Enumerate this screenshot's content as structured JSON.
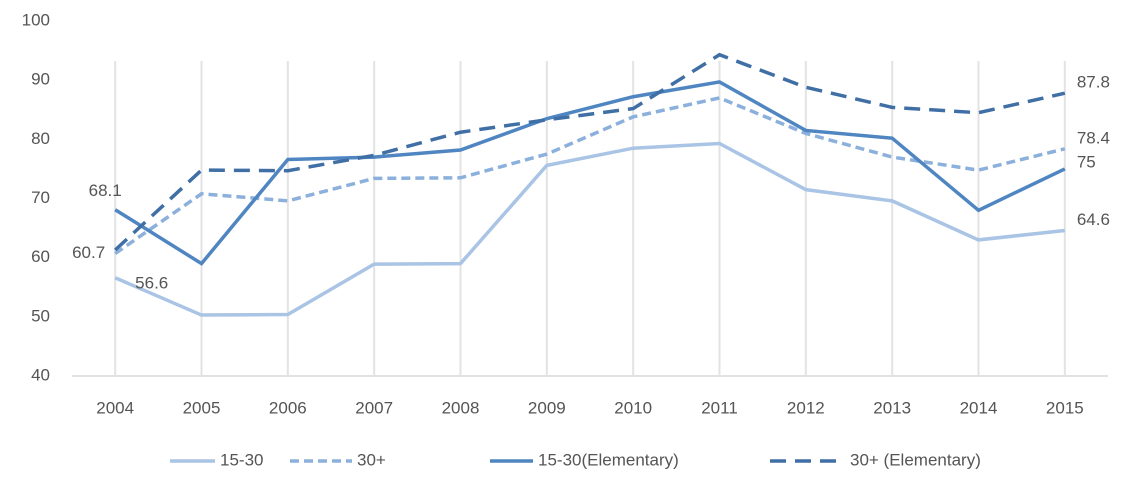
{
  "chart_data": {
    "type": "line",
    "categories": [
      "2004",
      "2005",
      "2006",
      "2007",
      "2008",
      "2009",
      "2010",
      "2011",
      "2012",
      "2013",
      "2014",
      "2015"
    ],
    "series": [
      {
        "name": "15-30",
        "color": "#a9c4e4",
        "dash": false,
        "values": [
          56.6,
          50.3,
          50.4,
          58.9,
          59,
          75.6,
          78.5,
          79.3,
          71.5,
          69.6,
          63,
          64.6
        ],
        "value_labels": [
          "56.6",
          null,
          null,
          null,
          null,
          null,
          null,
          null,
          null,
          null,
          null,
          "64.6"
        ]
      },
      {
        "name": "30+",
        "color": "#8cb0dc",
        "dash": true,
        "values": [
          60.7,
          70.8,
          69.6,
          73.4,
          73.5,
          77.5,
          83.8,
          87,
          81,
          77,
          74.8,
          78.4
        ],
        "value_labels": [
          "60.7",
          null,
          null,
          null,
          null,
          null,
          null,
          null,
          null,
          null,
          null,
          "78.4"
        ]
      },
      {
        "name": "15-30(Elementary)",
        "color": "#4f86c1",
        "dash": false,
        "values": [
          68.1,
          59,
          76.6,
          77,
          78.2,
          83.5,
          87.2,
          89.7,
          81.5,
          80.2,
          68,
          75
        ],
        "value_labels": [
          "68.1",
          null,
          null,
          null,
          null,
          null,
          null,
          null,
          null,
          null,
          null,
          "75"
        ]
      },
      {
        "name": "30+ (Elementary)",
        "color": "#3f6fa5",
        "dash": true,
        "values": [
          61.3,
          74.8,
          74.7,
          77.3,
          81.2,
          83.3,
          85.2,
          94.3,
          88.8,
          85.4,
          84.5,
          87.8
        ],
        "value_labels": [
          null,
          null,
          null,
          null,
          null,
          null,
          null,
          null,
          null,
          null,
          null,
          "87.8"
        ]
      }
    ],
    "ylim": [
      40,
      100
    ],
    "yticks": [
      40,
      50,
      60,
      70,
      80,
      90,
      100
    ],
    "grid": true,
    "legend": "bottom"
  }
}
